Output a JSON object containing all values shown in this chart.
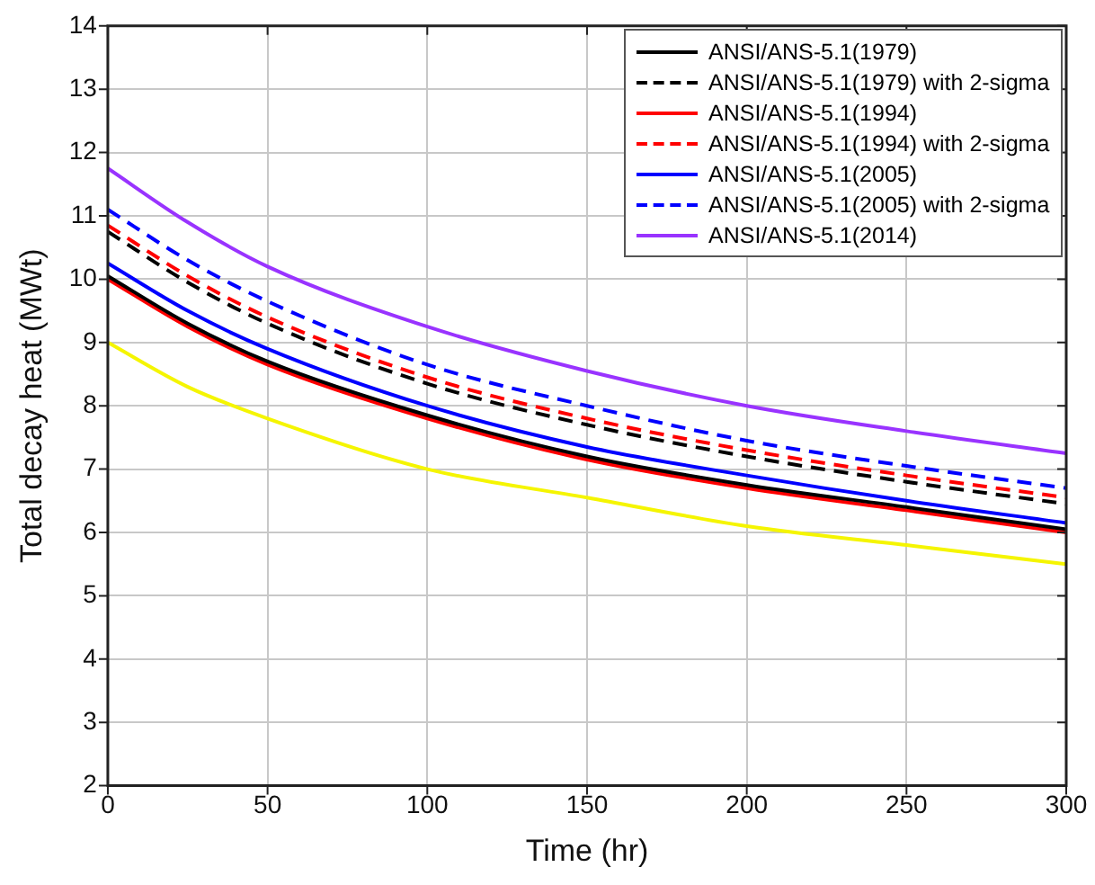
{
  "chart_data": {
    "type": "line",
    "xlabel": "Time (hr)",
    "ylabel": "Total decay heat (MWt)",
    "x": [
      0,
      25,
      50,
      100,
      150,
      200,
      250,
      300
    ],
    "xlim": [
      0,
      300
    ],
    "xticks": [
      0,
      50,
      100,
      150,
      200,
      250,
      300
    ],
    "ylim": [
      2,
      14
    ],
    "yticks": [
      2,
      3,
      4,
      5,
      6,
      7,
      8,
      9,
      10,
      11,
      12,
      13,
      14
    ],
    "grid": true,
    "legend": "top right",
    "marker": "none",
    "series": [
      {
        "name": "ANSI/ANS-5.1(1979)",
        "color": "#000000",
        "line_style": "solid",
        "values": [
          10.05,
          9.3,
          8.7,
          7.85,
          7.2,
          6.75,
          6.4,
          6.05
        ]
      },
      {
        "name": "ANSI/ANS-5.1(1979) with 2-sigma",
        "color": "#000000",
        "line_style": "dashed",
        "values": [
          10.75,
          9.95,
          9.3,
          8.35,
          7.7,
          7.2,
          6.8,
          6.45
        ]
      },
      {
        "name": "ANSI/ANS-5.1(1994)",
        "color": "#ff0000",
        "line_style": "solid",
        "values": [
          10.0,
          9.25,
          8.65,
          7.8,
          7.15,
          6.7,
          6.35,
          6.0
        ]
      },
      {
        "name": "ANSI/ANS-5.1(1994) with 2-sigma",
        "color": "#ff0000",
        "line_style": "dashed",
        "values": [
          10.85,
          10.05,
          9.4,
          8.45,
          7.8,
          7.3,
          6.9,
          6.55
        ]
      },
      {
        "name": "ANSI/ANS-5.1(2005)",
        "color": "#0000ff",
        "line_style": "solid",
        "values": [
          10.25,
          9.5,
          8.9,
          8.0,
          7.35,
          6.9,
          6.5,
          6.15
        ]
      },
      {
        "name": "ANSI/ANS-5.1(2005) with 2-sigma",
        "color": "#0000ff",
        "line_style": "dashed",
        "values": [
          11.1,
          10.3,
          9.65,
          8.65,
          8.0,
          7.45,
          7.05,
          6.7
        ]
      },
      {
        "name": "ANSI/ANS-5.1(2014)",
        "color": "#9933ff",
        "line_style": "solid",
        "values": [
          11.75,
          10.9,
          10.2,
          9.25,
          8.55,
          8.0,
          7.6,
          7.25
        ]
      },
      {
        "color": "#f5f500",
        "line_style": "solid",
        "values": [
          9.0,
          8.3,
          7.8,
          7.0,
          6.55,
          6.1,
          5.8,
          5.5
        ]
      }
    ]
  }
}
